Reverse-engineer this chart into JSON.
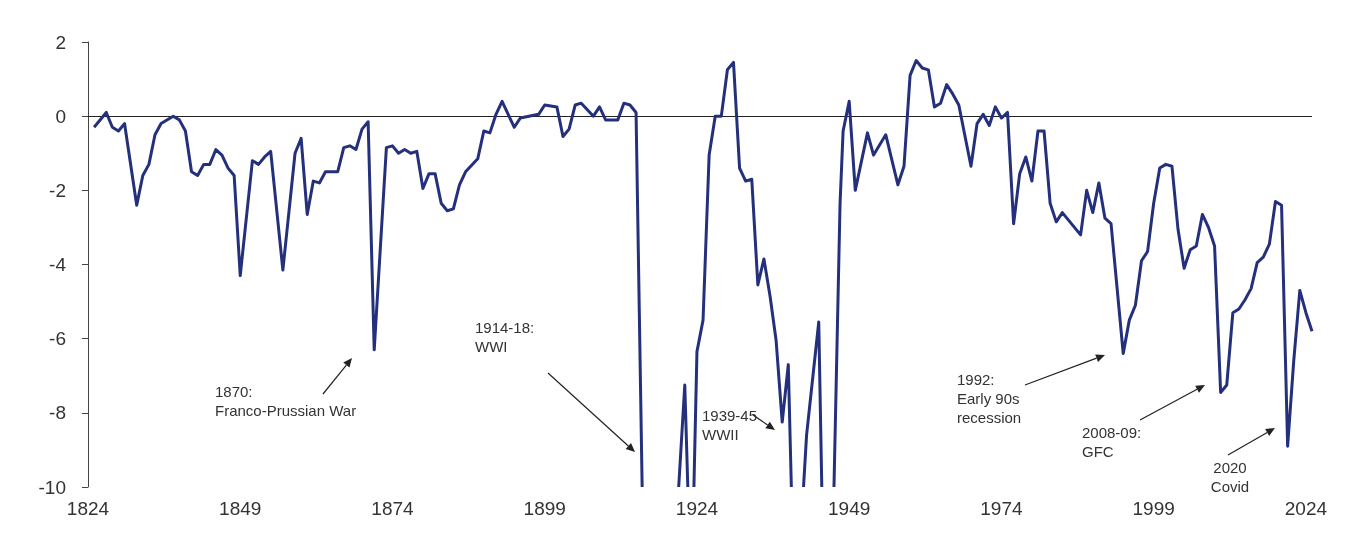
{
  "chart_data": {
    "type": "line",
    "color": "#24307c",
    "x": [
      1825,
      1827,
      1828,
      1829,
      1830,
      1832,
      1833,
      1834,
      1835,
      1836,
      1838,
      1839,
      1840,
      1841,
      1842,
      1843,
      1844,
      1845,
      1846,
      1847,
      1848,
      1849,
      1851,
      1852,
      1853,
      1854,
      1856,
      1858,
      1859,
      1860,
      1861,
      1862,
      1863,
      1865,
      1866,
      1867,
      1868,
      1869,
      1870,
      1871,
      1873,
      1874,
      1875,
      1876,
      1877,
      1878,
      1879,
      1880,
      1881,
      1882,
      1883,
      1884,
      1885,
      1886,
      1888,
      1889,
      1890,
      1891,
      1892,
      1894,
      1895,
      1898,
      1899,
      1901,
      1902,
      1903,
      1904,
      1905,
      1907,
      1908,
      1909,
      1911,
      1912,
      1913,
      1914,
      1915,
      1918,
      1921,
      1922,
      1922.5,
      1923,
      1923.5,
      1924,
      1925,
      1926,
      1927,
      1928,
      1929,
      1930,
      1931,
      1932,
      1933,
      1934,
      1935,
      1936,
      1937,
      1938,
      1939,
      1939.5,
      1941,
      1941.5,
      1942,
      1944,
      1944.5,
      1945,
      1946.5,
      1947.5,
      1948,
      1949,
      1950,
      1952,
      1953,
      1955,
      1957,
      1958,
      1959,
      1960,
      1961,
      1962,
      1963,
      1964,
      1965,
      1966,
      1967,
      1969,
      1970,
      1971,
      1972,
      1973,
      1974,
      1975,
      1976,
      1977,
      1978,
      1979,
      1980,
      1981,
      1982,
      1983,
      1984,
      1987,
      1988,
      1989,
      1990,
      1991,
      1992,
      1994,
      1995,
      1996,
      1997,
      1998,
      1999,
      2000,
      2001,
      2002,
      2003,
      2004,
      2005,
      2006,
      2007,
      2008,
      2009,
      2010,
      2011,
      2012,
      2013,
      2014,
      2015,
      2016,
      2017,
      2018,
      2019,
      2020,
      2021,
      2022,
      2023,
      2024,
      2025
    ],
    "values": [
      -0.3,
      0.1,
      -0.3,
      -0.4,
      -0.2,
      -2.4,
      -1.6,
      -1.3,
      -0.5,
      -0.2,
      0,
      -0.1,
      -0.4,
      -1.5,
      -1.6,
      -1.3,
      -1.3,
      -0.9,
      -1.05,
      -1.4,
      -1.6,
      -4.3,
      -1.2,
      -1.3,
      -1.1,
      -0.95,
      -4.15,
      -1,
      -0.6,
      -2.65,
      -1.75,
      -1.8,
      -1.5,
      -1.5,
      -0.85,
      -0.8,
      -0.9,
      -0.35,
      -0.15,
      -6.3,
      -0.85,
      -0.8,
      -1,
      -0.9,
      -1,
      -0.95,
      -1.95,
      -1.55,
      -1.55,
      -2.35,
      -2.55,
      -2.5,
      -1.85,
      -1.5,
      -1.15,
      -0.4,
      -0.45,
      0.05,
      0.4,
      -0.3,
      -0.05,
      0.05,
      0.3,
      0.25,
      -0.55,
      -0.35,
      0.3,
      0.35,
      0,
      0.25,
      -0.1,
      -0.1,
      0.35,
      0.3,
      0.1,
      -10,
      null,
      -10,
      -7.25,
      -10,
      null,
      -10,
      -6.35,
      -5.5,
      -1.05,
      0,
      0,
      1.25,
      1.45,
      -1.4,
      -1.75,
      -1.7,
      -4.55,
      -3.85,
      -4.85,
      -6.05,
      -8.25,
      -6.7,
      -10,
      null,
      -10,
      -8.6,
      -5.55,
      -10,
      null,
      -10,
      -2.35,
      -0.4,
      0.4,
      -2,
      -0.45,
      -1.05,
      -0.5,
      -1.85,
      -1.35,
      1.1,
      1.5,
      1.3,
      1.25,
      0.25,
      0.35,
      0.85,
      0.6,
      0.3,
      -1.35,
      -0.2,
      0.05,
      -0.25,
      0.25,
      -0.05,
      0.1,
      -2.9,
      -1.55,
      -1.1,
      -1.75,
      -0.4,
      -0.4,
      -2.35,
      -2.85,
      -2.6,
      -3.2,
      -2,
      -2.6,
      -1.8,
      -2.75,
      -2.9,
      -6.4,
      -5.5,
      -5.1,
      -3.9,
      -3.65,
      -2.35,
      -1.4,
      -1.3,
      -1.35,
      -3.05,
      -4.1,
      -3.6,
      -3.5,
      -2.65,
      -3,
      -3.5,
      -7.45,
      -7.25,
      -5.3,
      -5.2,
      -4.95,
      -4.65,
      -3.95,
      -3.8,
      -3.45,
      -2.3,
      -2.4,
      -8.9,
      -6.6,
      -4.7,
      -5.3,
      -5.8
    ],
    "xlim": [
      1824,
      2025
    ],
    "xticks": [
      1824,
      1849,
      1874,
      1899,
      1924,
      1949,
      1974,
      1999,
      2024
    ],
    "ylim": [
      -10,
      2
    ],
    "yticks": [
      -10,
      -8,
      -6,
      -4,
      -2,
      0,
      2
    ],
    "ref_lines": [
      {
        "axis": "y",
        "value": 0,
        "color": "#222222"
      }
    ],
    "annotations": [
      "1870:\nFranco-Prussian War",
      "1914-18:\nWWI",
      "1939-45\nWWII",
      "1992:\nEarly 90s\nrecession",
      "2008-09:\nGFC",
      "2020\nCovid"
    ]
  }
}
